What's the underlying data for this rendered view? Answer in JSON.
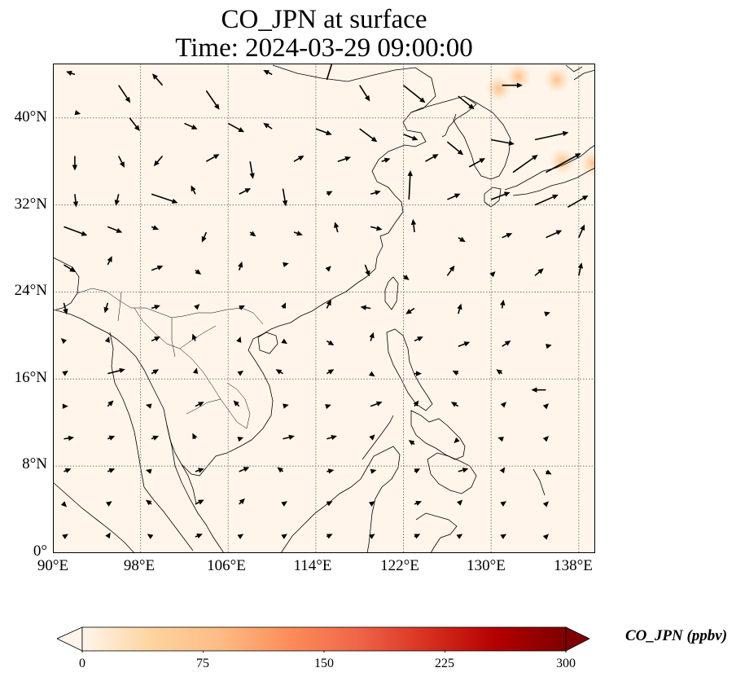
{
  "title": {
    "line1": "CO_JPN at surface",
    "line2": "Time: 2024-03-29 09:00:00"
  },
  "map": {
    "extent_lon": [
      90,
      139.5
    ],
    "extent_lat": [
      0,
      45
    ],
    "gridlines": true,
    "lat_labels": [
      "0°",
      "8°N",
      "16°N",
      "24°N",
      "32°N",
      "40°N"
    ],
    "lon_labels": [
      "90°E",
      "98°E",
      "106°E",
      "114°E",
      "122°E",
      "130°E",
      "138°E"
    ],
    "background_color": "#fff5eb",
    "coastline_color": "#000000",
    "hotspots": [
      {
        "lon": 130.7,
        "lat": 42.7
      },
      {
        "lon": 132.5,
        "lat": 43.8
      },
      {
        "lon": 136.0,
        "lat": 43.5
      },
      {
        "lon": 139.3,
        "lat": 35.8
      },
      {
        "lon": 136.5,
        "lat": 36.0
      }
    ],
    "wind_vectors": [
      [
        92,
        44,
        -0.6,
        0.2
      ],
      [
        96,
        43,
        0.8,
        -1.2
      ],
      [
        100,
        43,
        -0.7,
        0.8
      ],
      [
        104,
        42.5,
        0.9,
        -1.3
      ],
      [
        110,
        44,
        -0.6,
        0.3
      ],
      [
        115,
        43.5,
        0.5,
        1.6
      ],
      [
        118,
        43,
        0.7,
        -1.1
      ],
      [
        122,
        43,
        1.5,
        -1.2
      ],
      [
        127,
        42,
        1.1,
        -0.9
      ],
      [
        131,
        43,
        1.4,
        0
      ],
      [
        92,
        40.5,
        0.4,
        -0.1
      ],
      [
        97,
        40,
        0.7,
        -0.9
      ],
      [
        102,
        39.5,
        0.9,
        -0.4
      ],
      [
        106,
        39.5,
        1.1,
        -0.6
      ],
      [
        110,
        39,
        -0.6,
        0.4
      ],
      [
        114,
        39,
        1.1,
        -0.4
      ],
      [
        118,
        39,
        1.2,
        -0.9
      ],
      [
        122,
        38.5,
        1,
        -0.4
      ],
      [
        126,
        37.8,
        1.1,
        -0.9
      ],
      [
        130,
        38,
        1.6,
        -0.3
      ],
      [
        134,
        38,
        2.3,
        0.5
      ],
      [
        92,
        36.5,
        0,
        -1
      ],
      [
        96,
        36.5,
        0.4,
        -0.8
      ],
      [
        100,
        36.5,
        -0.6,
        -0.7
      ],
      [
        104,
        36,
        0.9,
        0.5
      ],
      [
        108,
        36,
        0.2,
        -1.2
      ],
      [
        112,
        36,
        0.7,
        0.4
      ],
      [
        116,
        36,
        0.9,
        0.3
      ],
      [
        120,
        36,
        0.6,
        0.2
      ],
      [
        124,
        36,
        0.9,
        0.5
      ],
      [
        128,
        35.5,
        1.1,
        0.6
      ],
      [
        132,
        35,
        1.7,
        1.2
      ],
      [
        135,
        35,
        2.4,
        1.3
      ],
      [
        92,
        33,
        0.1,
        -0.9
      ],
      [
        96,
        33,
        -0.2,
        -0.8
      ],
      [
        99,
        33,
        1.8,
        -0.6
      ],
      [
        103,
        33,
        -0.3,
        0.6
      ],
      [
        107,
        33,
        0.8,
        0.4
      ],
      [
        111,
        33.5,
        0.2,
        -1.2
      ],
      [
        115,
        33,
        0.4,
        0.2
      ],
      [
        119,
        33,
        0.7,
        0.2
      ],
      [
        122.5,
        32.5,
        0.1,
        2
      ],
      [
        126,
        32.5,
        0.9,
        0.4
      ],
      [
        130,
        32.5,
        1.3,
        0.5
      ],
      [
        134,
        32,
        1.6,
        0.7
      ],
      [
        137,
        31.8,
        1.4,
        0.8
      ],
      [
        91,
        30,
        1.6,
        -0.6
      ],
      [
        95,
        30,
        1,
        -0.4
      ],
      [
        99,
        30,
        0.5,
        -0.2
      ],
      [
        104,
        29.5,
        -0.3,
        -0.7
      ],
      [
        108,
        29.5,
        0.4,
        -0.3
      ],
      [
        112,
        29.5,
        0.6,
        -0.2
      ],
      [
        116,
        29.5,
        -0.2,
        0.7
      ],
      [
        119,
        30,
        0.8,
        -0.2
      ],
      [
        123,
        29.5,
        -0.1,
        0.9
      ],
      [
        127,
        29,
        0.5,
        -0.3
      ],
      [
        131,
        29,
        0.7,
        0.3
      ],
      [
        135,
        29,
        1.1,
        0.5
      ],
      [
        138,
        29,
        0.4,
        0.9
      ],
      [
        91,
        26.5,
        0.8,
        -0.5
      ],
      [
        95,
        26.5,
        0.3,
        0.6
      ],
      [
        99,
        26,
        0.8,
        0.3
      ],
      [
        103,
        26,
        0.4,
        -0.3
      ],
      [
        107,
        26,
        0.2,
        0.6
      ],
      [
        111,
        26.5,
        0.4,
        0.1
      ],
      [
        115,
        26,
        0.3,
        0.3
      ],
      [
        118.5,
        26.5,
        0.3,
        -0.8
      ],
      [
        122,
        25.5,
        0.4,
        -0.3
      ],
      [
        126,
        25.5,
        0.5,
        0.7
      ],
      [
        130,
        25.5,
        0.3,
        0.3
      ],
      [
        134,
        25.5,
        0.6,
        0.5
      ],
      [
        138,
        25.5,
        0.2,
        0.9
      ],
      [
        91,
        23,
        0.2,
        -0.8
      ],
      [
        95,
        23,
        -0.2,
        -0.7
      ],
      [
        99,
        22.5,
        0.6,
        0.2
      ],
      [
        103,
        22.5,
        0.3,
        0.3
      ],
      [
        107,
        22.5,
        0.4,
        0.2
      ],
      [
        111,
        22.5,
        0.2,
        0.4
      ],
      [
        115,
        22.5,
        0.3,
        0.6
      ],
      [
        119,
        22.5,
        -0.7,
        0.1
      ],
      [
        123,
        22.5,
        -0.6,
        -0.4
      ],
      [
        127,
        22,
        0.2,
        0.7
      ],
      [
        131,
        22.5,
        0.1,
        0.6
      ],
      [
        135,
        22,
        0.3,
        0.1
      ],
      [
        91,
        19.5,
        -0.2,
        0.2
      ],
      [
        95,
        19.5,
        0.1,
        0.3
      ],
      [
        99,
        19.5,
        0.6,
        0.3
      ],
      [
        103,
        19.5,
        -0.2,
        0.5
      ],
      [
        107,
        19.5,
        0.1,
        0.3
      ],
      [
        111,
        19.5,
        0.3,
        -0.2
      ],
      [
        115,
        19.5,
        0.5,
        -0.3
      ],
      [
        119,
        19.5,
        0.2,
        0.6
      ],
      [
        123,
        19.5,
        0.6,
        0.3
      ],
      [
        127,
        19,
        0.8,
        0.3
      ],
      [
        131,
        19,
        0.6,
        0.4
      ],
      [
        135,
        19,
        0.4,
        0.1
      ],
      [
        91,
        16.5,
        0.3,
        0.2
      ],
      [
        95,
        16.5,
        1.2,
        0.3
      ],
      [
        99,
        16.5,
        0.5,
        0.3
      ],
      [
        103,
        16.5,
        0.1,
        0.4
      ],
      [
        107,
        16.5,
        0.3,
        0.2
      ],
      [
        111,
        16.5,
        -0.5,
        0.3
      ],
      [
        115,
        16.5,
        0.5,
        0.3
      ],
      [
        119,
        16.5,
        0.3,
        -0.2
      ],
      [
        123,
        16.5,
        0.5,
        0
      ],
      [
        127,
        16.5,
        -0.4,
        0.2
      ],
      [
        131,
        16.5,
        -0.4,
        0.3
      ],
      [
        135,
        15,
        -1,
        0
      ],
      [
        91,
        13.5,
        0.3,
        0
      ],
      [
        95,
        13.5,
        0.4,
        0.4
      ],
      [
        99,
        13.5,
        -0.4,
        0.1
      ],
      [
        103,
        13.5,
        0.6,
        0.3
      ],
      [
        107,
        13.5,
        -0.4,
        0.4
      ],
      [
        111,
        13.5,
        0.4,
        0.1
      ],
      [
        115,
        13.5,
        0.3,
        0.1
      ],
      [
        119,
        13.5,
        0.8,
        0.3
      ],
      [
        123,
        13.5,
        0.3,
        0.4
      ],
      [
        127,
        13.5,
        -0.5,
        0.3
      ],
      [
        131,
        13.5,
        0.3,
        0.3
      ],
      [
        135,
        13.5,
        0.2,
        0.2
      ],
      [
        91,
        10.5,
        0.7,
        0.1
      ],
      [
        95,
        10.5,
        0.5,
        0.2
      ],
      [
        99,
        10.5,
        0.5,
        0.2
      ],
      [
        103,
        10.5,
        -0.2,
        0.4
      ],
      [
        107,
        10.5,
        0.3,
        0.1
      ],
      [
        111,
        10.5,
        0.8,
        0.2
      ],
      [
        115,
        10.5,
        0.7,
        0.2
      ],
      [
        119,
        10.5,
        0.3,
        0.3
      ],
      [
        123,
        10,
        -0.4,
        0.3
      ],
      [
        127,
        10.5,
        -0.3,
        -0.3
      ],
      [
        131,
        10.5,
        -0.3,
        0.1
      ],
      [
        135,
        10.5,
        0.2,
        0.2
      ],
      [
        91,
        7.5,
        0.5,
        0.2
      ],
      [
        95,
        7.5,
        0.5,
        0.2
      ],
      [
        99,
        7.5,
        -0.4,
        0.1
      ],
      [
        103,
        7.5,
        0.6,
        0.2
      ],
      [
        107,
        7.5,
        0.7,
        0.3
      ],
      [
        111,
        7.5,
        -0.4,
        0.3
      ],
      [
        115,
        7.5,
        0.5,
        0.1
      ],
      [
        119,
        7.5,
        0.4,
        0.1
      ],
      [
        123,
        7.5,
        0.4,
        0.2
      ],
      [
        127,
        7.5,
        0.7,
        0.2
      ],
      [
        131,
        7.5,
        0.2,
        0.3
      ],
      [
        135,
        7.5,
        0.4,
        -0.2
      ],
      [
        91,
        4.5,
        0.2,
        -0.2
      ],
      [
        95,
        4.5,
        0.3,
        0.2
      ],
      [
        99,
        4.5,
        -0.4,
        0.3
      ],
      [
        103,
        4.5,
        0.6,
        0.3
      ],
      [
        107,
        4.5,
        0.4,
        0.4
      ],
      [
        111,
        4.5,
        0.3,
        0.2
      ],
      [
        115,
        4.5,
        0.4,
        0.2
      ],
      [
        119,
        4.5,
        0.3,
        0.2
      ],
      [
        123,
        4.5,
        0.5,
        0.2
      ],
      [
        127,
        4.5,
        0.3,
        0.3
      ],
      [
        131,
        4.5,
        0.3,
        0.2
      ],
      [
        135,
        4.5,
        0.2,
        0.2
      ],
      [
        91,
        1.5,
        0.3,
        0.2
      ],
      [
        95,
        1.5,
        0.2,
        0.3
      ],
      [
        99,
        1.5,
        -0.3,
        0.2
      ],
      [
        103,
        1.5,
        0.5,
        0.2
      ],
      [
        107,
        1.5,
        0.3,
        0.2
      ],
      [
        111,
        1.5,
        0.3,
        0.2
      ],
      [
        115,
        1.5,
        0.4,
        0.2
      ],
      [
        119,
        1.5,
        0.3,
        0.2
      ],
      [
        123,
        1.5,
        0.4,
        0.2
      ],
      [
        127,
        1.5,
        0.3,
        0.2
      ],
      [
        131,
        1.5,
        0.3,
        0.2
      ],
      [
        135,
        1.5,
        0.2,
        0.2
      ]
    ]
  },
  "colorbar": {
    "label": "CO_JPN (ppbv)",
    "min": 0,
    "max": 300,
    "ticks": [
      "0",
      "75",
      "150",
      "225",
      "300"
    ],
    "tick_values": [
      0,
      75,
      150,
      225,
      300
    ],
    "colormap": "OrRd",
    "colors": [
      "#fff5eb",
      "#fdd49e",
      "#fdbb84",
      "#fc8d59",
      "#ef6548",
      "#d7301f",
      "#b30000",
      "#7f0000"
    ],
    "extend": "both"
  }
}
